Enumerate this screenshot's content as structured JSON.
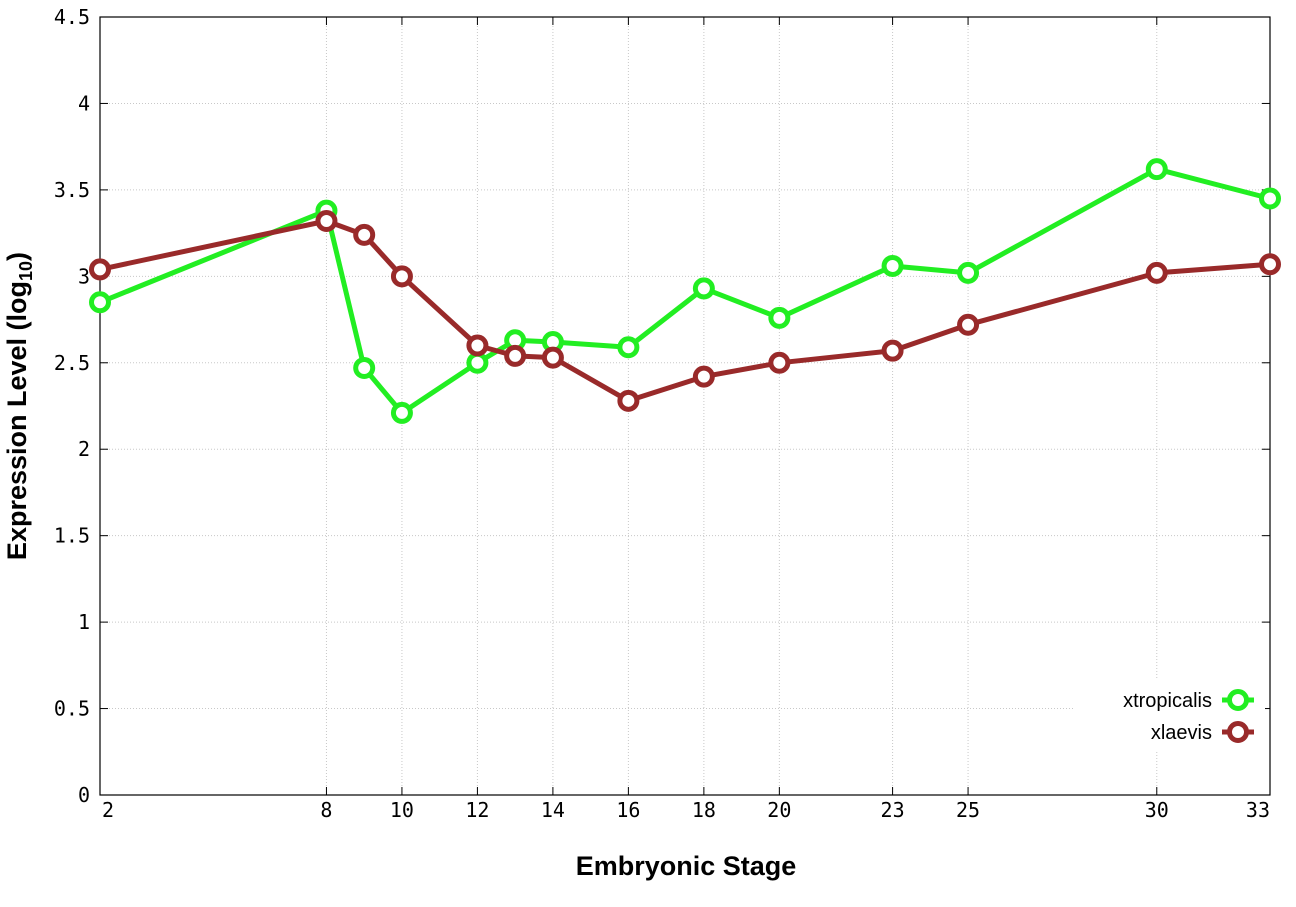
{
  "chart_data": {
    "type": "line",
    "xlabel": "Embryonic Stage",
    "ylabel": {
      "main": "Expression Level (log",
      "sub": "10",
      "end": ")"
    },
    "x": [
      2,
      8,
      9,
      10,
      12,
      13,
      14,
      16,
      18,
      20,
      23,
      25,
      30,
      33
    ],
    "x_tick_labels": [
      "2",
      "8",
      "10",
      "12",
      "14",
      "16",
      "18",
      "20",
      "23",
      "25",
      "30",
      "33"
    ],
    "x_tick_values": [
      2,
      8,
      10,
      12,
      14,
      16,
      18,
      20,
      23,
      25,
      30,
      33
    ],
    "y_tick_labels": [
      "0",
      "0.5",
      "1",
      "1.5",
      "2",
      "2.5",
      "3",
      "3.5",
      "4",
      "4.5"
    ],
    "y_tick_values": [
      0,
      0.5,
      1,
      1.5,
      2,
      2.5,
      3,
      3.5,
      4,
      4.5
    ],
    "xlim": [
      2,
      33
    ],
    "ylim": [
      0,
      4.5
    ],
    "grid": true,
    "legend_position": "bottom-right",
    "series": [
      {
        "name": "xtropicalis",
        "color": "#22ee22",
        "values": [
          2.85,
          3.38,
          2.47,
          2.21,
          2.5,
          2.63,
          2.62,
          2.59,
          2.93,
          2.76,
          3.06,
          3.02,
          3.62,
          3.45
        ]
      },
      {
        "name": "xlaevis",
        "color": "#992a2a",
        "values": [
          3.04,
          3.32,
          3.24,
          3.0,
          2.6,
          2.54,
          2.53,
          2.28,
          2.42,
          2.5,
          2.57,
          2.72,
          3.02,
          3.07
        ]
      }
    ]
  }
}
